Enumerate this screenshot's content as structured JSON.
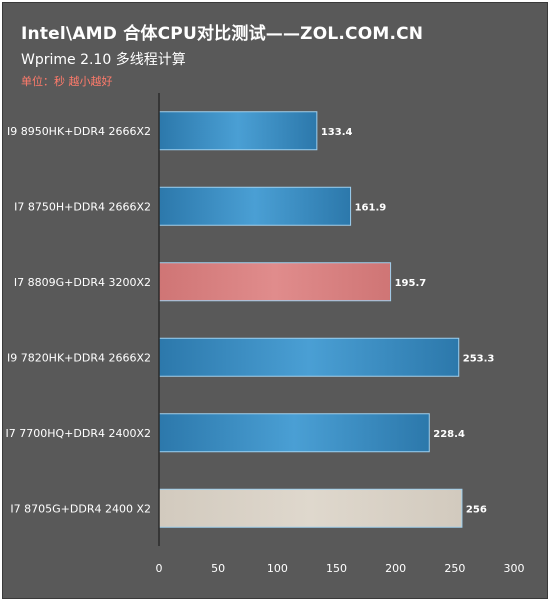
{
  "header": {
    "title": "Intel\\AMD 合体CPU对比测试——ZOL.COM.CN",
    "subtitle": "Wprime 2.10 多线程计算",
    "unit_note": "单位：秒 越小越好"
  },
  "colors": {
    "background": "#595959",
    "bar_blue": "#3a8ec4",
    "bar_pink": "#d98080",
    "bar_beige": "#d8d0c4"
  },
  "chart_data": {
    "type": "bar",
    "orientation": "horizontal",
    "categories": [
      "I9 8950HK+DDR4 2666X2",
      "I7 8750H+DDR4 2666X2",
      "I7 8809G+DDR4 3200X2",
      "I9 7820HK+DDR4 2666X2",
      "I7 7700HQ+DDR4 2400X2",
      "I7 8705G+DDR4 2400 X2"
    ],
    "values": [
      133.4,
      161.9,
      195.7,
      253.3,
      228.4,
      256
    ],
    "value_labels": [
      "133.4",
      "161.9",
      "195.7",
      "253.3",
      "228.4",
      "256"
    ],
    "bar_colors": [
      "#3a8ec4",
      "#3a8ec4",
      "#d98080",
      "#3a8ec4",
      "#3a8ec4",
      "#d8d0c4"
    ],
    "xlim": [
      0,
      300
    ],
    "ticks": [
      "0",
      "50",
      "100",
      "150",
      "200",
      "250",
      "300"
    ],
    "xlabel": "",
    "ylabel": "",
    "grid": false
  }
}
